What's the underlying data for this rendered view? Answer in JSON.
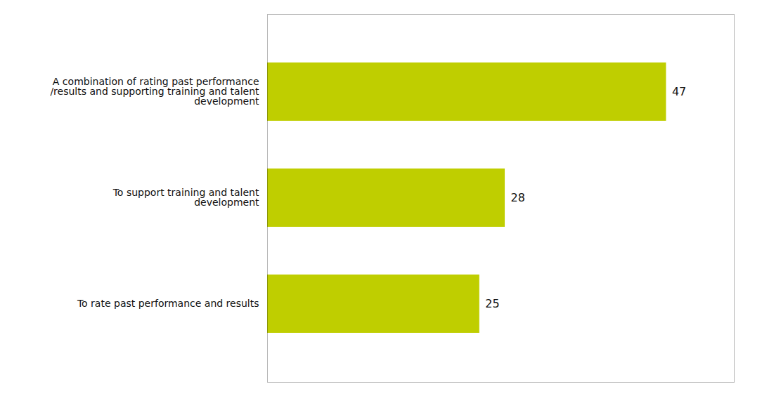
{
  "chart_data": {
    "type": "bar",
    "orientation": "horizontal",
    "categories": [
      "To rate past performance and results",
      "To support training and talent\ndevelopment",
      "A combination of rating past performance\n/results and supporting training and talent\ndevelopment"
    ],
    "values": [
      25,
      28,
      47
    ],
    "color": "#BFCE00",
    "xlim": [
      0,
      55
    ],
    "data_labels": true,
    "tick_labels": "y",
    "grid": false
  }
}
